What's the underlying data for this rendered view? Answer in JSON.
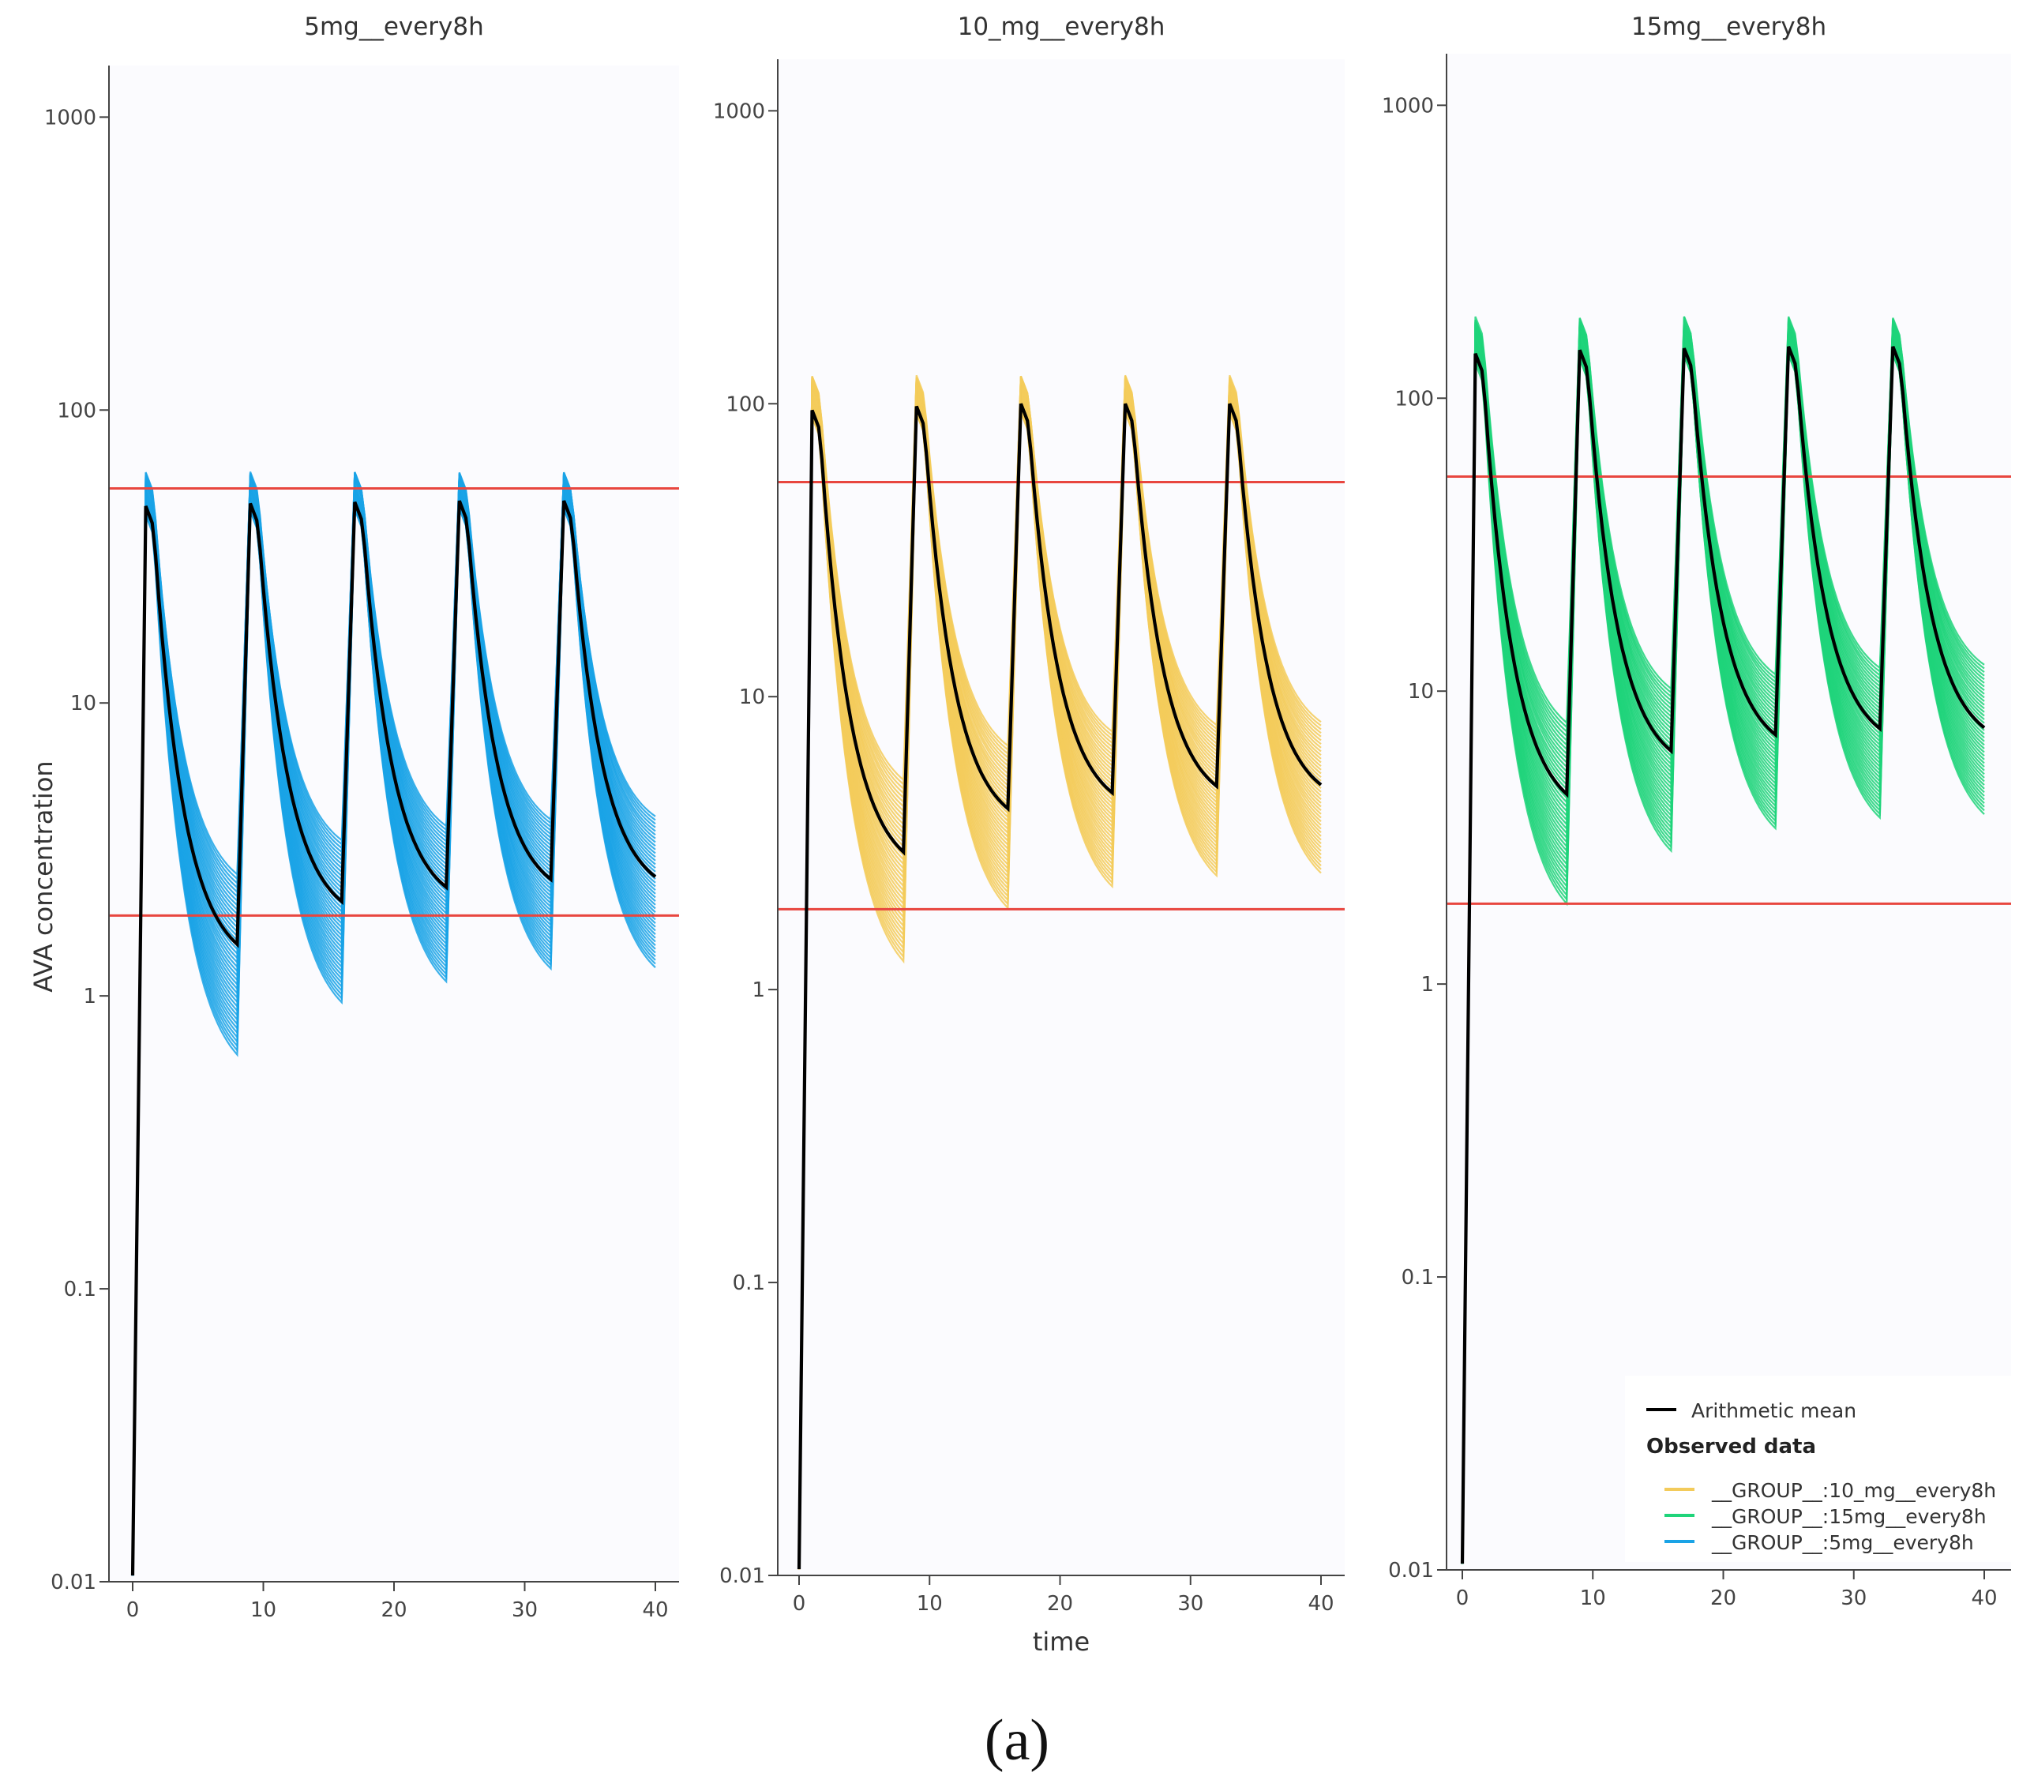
{
  "figure_label": "(a)",
  "colors": {
    "panel_bg": "#fbfbfe",
    "axis": "#444444",
    "threshold": "#e8463f",
    "mean": "#000000",
    "group_10mg": "#f3cb5b",
    "group_15mg": "#1fd47a",
    "group_5mg": "#1aa3e6"
  },
  "chart_data": [
    {
      "type": "line",
      "title": "5mg__every8h",
      "xlabel": "",
      "ylabel": "AVA concentration",
      "yscale": "log",
      "ylim": [
        0.01,
        1500
      ],
      "xlim": [
        -2,
        42
      ],
      "xticks": [
        "0",
        "10",
        "20",
        "30",
        "40"
      ],
      "yticks": [
        "0.01",
        "0.1",
        "1",
        "10",
        "100",
        "1000"
      ],
      "threshold_lines": [
        54,
        1.88
      ],
      "dose_times": [
        0,
        8,
        16,
        24,
        32
      ],
      "series_color": "group_5mg",
      "mean_peak": [
        47,
        48,
        48.5,
        49,
        49
      ],
      "mean_trough": [
        1.5,
        2.1,
        2.35,
        2.5,
        2.55
      ],
      "band_peak_high": 62,
      "band_trough_low": [
        0.63,
        0.95,
        1.12,
        1.24,
        1.25
      ],
      "band_trough_high": [
        2.6,
        3.4,
        3.8,
        4.0,
        4.1
      ]
    },
    {
      "type": "line",
      "title": "10_mg__every8h",
      "xlabel": "time",
      "ylabel": "",
      "yscale": "log",
      "ylim": [
        0.01,
        1500
      ],
      "xlim": [
        -2,
        42
      ],
      "xticks": [
        "0",
        "10",
        "20",
        "30",
        "40"
      ],
      "yticks": [
        "0.01",
        "0.1",
        "1",
        "10",
        "100",
        "1000"
      ],
      "threshold_lines": [
        54,
        1.88
      ],
      "dose_times": [
        0,
        8,
        16,
        24,
        32
      ],
      "series_color": "group_10mg",
      "mean_peak": [
        95,
        98,
        100,
        100,
        100
      ],
      "mean_trough": [
        2.95,
        4.15,
        4.7,
        4.95,
        5.0
      ],
      "band_peak_high": 125,
      "band_trough_low": [
        1.25,
        1.9,
        2.25,
        2.45,
        2.5
      ],
      "band_trough_high": [
        5.2,
        6.8,
        7.6,
        8.0,
        8.2
      ]
    },
    {
      "type": "line",
      "title": "15mg__every8h",
      "xlabel": "",
      "ylabel": "",
      "yscale": "log",
      "ylim": [
        0.01,
        1500
      ],
      "xlim": [
        -2,
        42
      ],
      "xticks": [
        "0",
        "10",
        "20",
        "30",
        "40"
      ],
      "yticks": [
        "0.01",
        "0.1",
        "1",
        "10",
        "100",
        "1000"
      ],
      "threshold_lines": [
        54,
        1.88
      ],
      "dose_times": [
        0,
        8,
        16,
        24,
        32
      ],
      "series_color": "group_15mg",
      "mean_peak": [
        142,
        146,
        148,
        150,
        150
      ],
      "mean_trough": [
        4.45,
        6.25,
        7.1,
        7.45,
        7.5
      ],
      "band_peak_high": 190,
      "band_trough_low": [
        1.88,
        2.85,
        3.4,
        3.7,
        3.8
      ],
      "band_trough_high": [
        7.8,
        10.2,
        11.4,
        12.0,
        12.3
      ]
    }
  ],
  "legend": {
    "mean_label": "Arithmetic mean",
    "heading": "Observed data",
    "items": [
      {
        "label": "__GROUP__:10_mg__every8h",
        "color": "group_10mg"
      },
      {
        "label": "__GROUP__:15mg__every8h",
        "color": "group_15mg"
      },
      {
        "label": "__GROUP__:5mg__every8h",
        "color": "group_5mg"
      }
    ]
  }
}
